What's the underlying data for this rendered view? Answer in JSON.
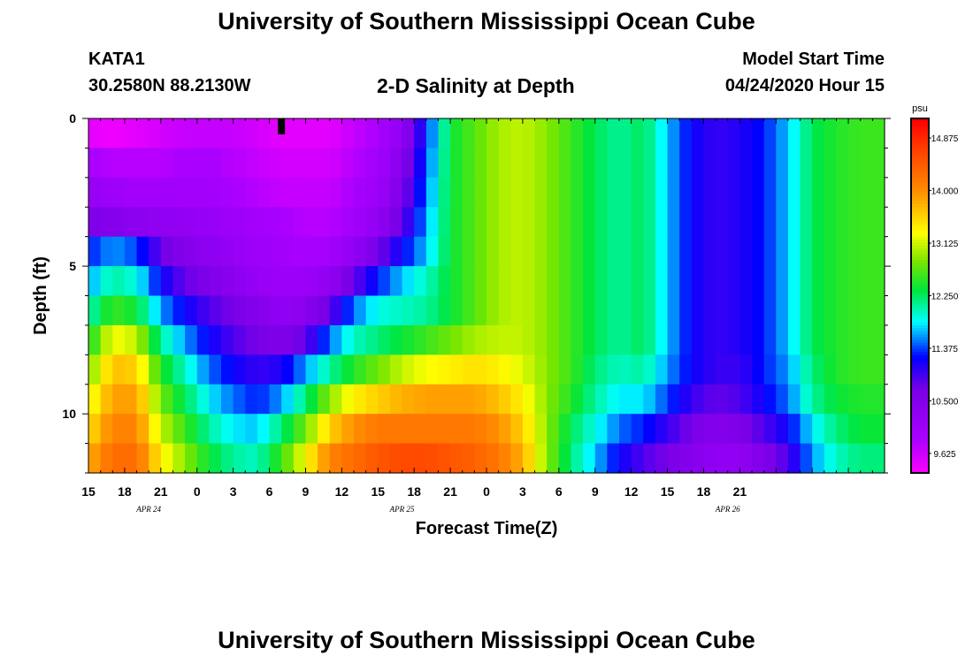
{
  "header": {
    "title": "University of Southern Mississippi Ocean Cube",
    "station_id": "KATA1",
    "station_coords": "30.2580N 88.2130W",
    "plot_title": "2-D Salinity at Depth",
    "model_start_label": "Model Start Time",
    "model_start_value": "04/24/2020 Hour 15"
  },
  "footer": {
    "title": "University of Southern Mississippi Ocean Cube"
  },
  "colors": {
    "background": "#ffffff",
    "axis": "#000000",
    "marker": "#000000"
  },
  "chart_data": {
    "type": "heatmap",
    "xlabel": "Forecast Time(Z)",
    "ylabel": "Depth (ft)",
    "colorbar_unit": "psu",
    "colorbar_ticks": [
      "9.625",
      "10.500",
      "11.375",
      "12.250",
      "13.125",
      "14.000",
      "14.875"
    ],
    "value_range": [
      9.3,
      15.2
    ],
    "x_hours_since_start": [
      0,
      66
    ],
    "y_depth_ft": [
      0,
      12
    ],
    "y_ticks": [
      0,
      5,
      10
    ],
    "x_tick_labels": [
      "15",
      "18",
      "21",
      "0",
      "3",
      "6",
      "9",
      "12",
      "15",
      "18",
      "21",
      "0",
      "3",
      "6",
      "9",
      "12",
      "15",
      "18",
      "21"
    ],
    "date_labels": [
      {
        "text": "APR 24",
        "hour": 5
      },
      {
        "text": "APR 25",
        "hour": 26
      },
      {
        "text": "APR 26",
        "hour": 53
      }
    ],
    "current_time_marker_hour": 16,
    "rows_depth_ft": [
      0.5,
      1.5,
      2.5,
      3.5,
      4.5,
      5.5,
      6.5,
      7.5,
      8.5,
      9.5,
      10.5,
      11.5
    ],
    "columns_hour": [
      0,
      2,
      4,
      6,
      8,
      10,
      12,
      14,
      16,
      18,
      20,
      22,
      24,
      26,
      28,
      30,
      32,
      34,
      36,
      38,
      40,
      42,
      44,
      46,
      48,
      50,
      52,
      54,
      56,
      58,
      60,
      62,
      64,
      66
    ],
    "salinity_psu": [
      [
        9.5,
        9.4,
        9.5,
        9.6,
        9.7,
        9.7,
        9.7,
        9.6,
        9.5,
        9.5,
        9.5,
        9.7,
        9.9,
        10.3,
        11.3,
        12.4,
        12.7,
        13.0,
        13.1,
        12.9,
        12.6,
        12.3,
        12.1,
        12.3,
        11.7,
        11.2,
        11.0,
        11.1,
        11.3,
        11.7,
        12.3,
        12.5,
        12.6,
        12.6
      ],
      [
        9.9,
        9.8,
        9.8,
        9.8,
        9.9,
        9.9,
        9.8,
        9.7,
        9.6,
        9.6,
        9.6,
        9.8,
        10.0,
        10.5,
        11.4,
        12.4,
        12.7,
        13.0,
        13.1,
        12.9,
        12.6,
        12.3,
        12.1,
        12.3,
        11.7,
        11.2,
        11.0,
        11.1,
        11.3,
        11.7,
        12.3,
        12.5,
        12.6,
        12.6
      ],
      [
        10.2,
        10.1,
        10.0,
        10.0,
        10.0,
        10.0,
        9.9,
        9.8,
        9.7,
        9.7,
        9.7,
        9.9,
        10.1,
        10.6,
        11.5,
        12.4,
        12.7,
        13.0,
        13.1,
        12.9,
        12.6,
        12.3,
        12.1,
        12.3,
        11.7,
        11.2,
        11.0,
        11.1,
        11.3,
        11.7,
        12.3,
        12.5,
        12.6,
        12.6
      ],
      [
        10.6,
        10.5,
        10.4,
        10.3,
        10.3,
        10.2,
        10.1,
        10.0,
        9.9,
        9.8,
        9.8,
        10.0,
        10.3,
        10.8,
        11.6,
        12.4,
        12.7,
        13.0,
        13.1,
        12.9,
        12.6,
        12.3,
        12.1,
        12.3,
        11.7,
        11.2,
        11.0,
        11.1,
        11.3,
        11.7,
        12.3,
        12.5,
        12.6,
        12.6
      ],
      [
        11.3,
        11.6,
        11.4,
        10.8,
        10.5,
        10.4,
        10.2,
        10.1,
        10.0,
        9.9,
        10.0,
        10.3,
        10.7,
        11.2,
        11.7,
        12.4,
        12.7,
        13.0,
        13.1,
        12.9,
        12.6,
        12.3,
        12.1,
        12.3,
        11.7,
        11.2,
        11.0,
        11.1,
        11.3,
        11.7,
        12.3,
        12.5,
        12.6,
        12.6
      ],
      [
        11.6,
        12.1,
        11.9,
        11.2,
        10.8,
        10.6,
        10.4,
        10.2,
        10.1,
        10.1,
        10.3,
        10.8,
        11.3,
        11.7,
        12.0,
        12.4,
        12.7,
        13.0,
        13.1,
        12.9,
        12.6,
        12.3,
        12.1,
        12.3,
        11.7,
        11.2,
        11.0,
        11.1,
        11.3,
        11.7,
        12.3,
        12.5,
        12.6,
        12.6
      ],
      [
        12.0,
        12.6,
        12.4,
        11.6,
        11.2,
        10.9,
        10.7,
        10.5,
        10.3,
        10.4,
        10.8,
        11.5,
        11.9,
        12.0,
        12.1,
        12.4,
        12.7,
        13.0,
        13.1,
        12.9,
        12.6,
        12.3,
        12.1,
        12.3,
        11.7,
        11.2,
        11.0,
        11.1,
        11.3,
        11.7,
        12.3,
        12.5,
        12.6,
        12.6
      ],
      [
        12.4,
        13.3,
        13.1,
        12.1,
        11.6,
        11.2,
        10.9,
        10.7,
        10.6,
        10.8,
        11.5,
        12.0,
        12.2,
        12.4,
        12.6,
        12.8,
        13.0,
        13.1,
        13.1,
        12.9,
        12.6,
        12.3,
        12.1,
        12.3,
        11.7,
        11.2,
        11.0,
        11.1,
        11.3,
        11.7,
        12.3,
        12.5,
        12.6,
        12.6
      ],
      [
        12.8,
        13.7,
        13.6,
        12.5,
        12.0,
        11.5,
        11.2,
        11.0,
        11.1,
        11.6,
        12.1,
        12.5,
        12.8,
        13.1,
        13.3,
        13.4,
        13.5,
        13.4,
        13.2,
        12.9,
        12.6,
        12.2,
        12.0,
        12.1,
        11.6,
        11.2,
        11.0,
        11.0,
        11.3,
        11.6,
        12.2,
        12.5,
        12.6,
        12.6
      ],
      [
        13.2,
        13.9,
        13.9,
        12.8,
        12.3,
        11.8,
        11.5,
        11.3,
        11.6,
        12.2,
        12.9,
        13.4,
        13.6,
        13.8,
        13.9,
        13.9,
        13.9,
        13.7,
        13.4,
        12.9,
        12.5,
        12.1,
        11.8,
        11.8,
        11.4,
        11.0,
        10.8,
        10.9,
        11.2,
        11.5,
        12.1,
        12.4,
        12.5,
        12.5
      ],
      [
        13.5,
        14.1,
        14.1,
        13.1,
        12.6,
        12.1,
        11.8,
        11.7,
        12.2,
        12.8,
        13.6,
        14.0,
        14.2,
        14.2,
        14.2,
        14.2,
        14.2,
        14.0,
        13.6,
        12.9,
        12.3,
        11.9,
        11.5,
        11.3,
        11.0,
        10.7,
        10.5,
        10.6,
        10.9,
        11.2,
        11.8,
        12.2,
        12.4,
        12.4
      ],
      [
        13.8,
        14.3,
        14.3,
        13.4,
        12.9,
        12.4,
        12.1,
        12.0,
        12.6,
        13.3,
        14.1,
        14.3,
        14.5,
        14.6,
        14.6,
        14.5,
        14.4,
        14.2,
        13.8,
        12.9,
        12.2,
        11.7,
        11.2,
        10.9,
        10.7,
        10.5,
        10.3,
        10.3,
        10.6,
        10.9,
        11.6,
        12.0,
        12.2,
        12.2
      ]
    ]
  }
}
